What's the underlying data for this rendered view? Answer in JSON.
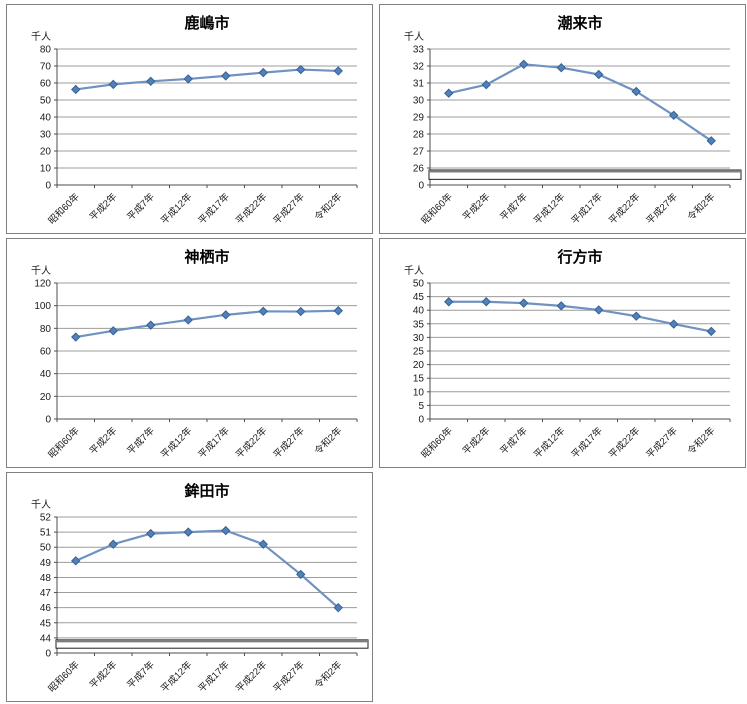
{
  "page": {
    "background": "#ffffff",
    "description_colors": {
      "series_line": "#7092c0",
      "series_marker": "#4f81bd",
      "marker_border": "#38618f",
      "gridline": "#9c9c9c",
      "axis": "#4d4d4d",
      "tick_text": "#1a1a1a",
      "panel_border": "#808080",
      "break_band_fill": "#ffffff",
      "break_band_border": "#1f1f1f",
      "break_band_top": "#7f7f7f"
    }
  },
  "chart_data": [
    {
      "id": "kashima",
      "type": "line",
      "title": "鹿嶋市",
      "ylabel": "千人",
      "categories": [
        "昭和60年",
        "平成2年",
        "平成7年",
        "平成12年",
        "平成17年",
        "平成22年",
        "平成27年",
        "令和2年"
      ],
      "values": [
        56.2,
        59.2,
        61.0,
        62.4,
        64.2,
        66.1,
        67.9,
        67.1
      ],
      "ylim": [
        0,
        80
      ],
      "ystep": 10,
      "axis_break": false,
      "break_base_label": "",
      "grid": true,
      "legend": "none"
    },
    {
      "id": "itako",
      "type": "line",
      "title": "潮来市",
      "ylabel": "千人",
      "categories": [
        "昭和60年",
        "平成2年",
        "平成7年",
        "平成12年",
        "平成17年",
        "平成22年",
        "平成27年",
        "令和2年"
      ],
      "values": [
        30.4,
        30.9,
        32.1,
        31.9,
        31.5,
        30.5,
        29.1,
        27.6
      ],
      "ylim": [
        26,
        33
      ],
      "ystep": 1,
      "axis_break": true,
      "break_base_label": "0",
      "grid": true,
      "legend": "none"
    },
    {
      "id": "kamisu",
      "type": "line",
      "title": "神栖市",
      "ylabel": "千人",
      "categories": [
        "昭和60年",
        "平成2年",
        "平成7年",
        "平成12年",
        "平成17年",
        "平成22年",
        "平成27年",
        "令和2年"
      ],
      "values": [
        72.3,
        77.8,
        82.8,
        87.4,
        91.9,
        95.0,
        94.8,
        95.5
      ],
      "ylim": [
        0,
        120
      ],
      "ystep": 20,
      "axis_break": false,
      "break_base_label": "",
      "grid": true,
      "legend": "none"
    },
    {
      "id": "namegata",
      "type": "line",
      "title": "行方市",
      "ylabel": "千人",
      "categories": [
        "昭和60年",
        "平成2年",
        "平成7年",
        "平成12年",
        "平成17年",
        "平成22年",
        "平成27年",
        "令和2年"
      ],
      "values": [
        43.1,
        43.1,
        42.6,
        41.6,
        40.1,
        37.8,
        34.9,
        32.2
      ],
      "ylim": [
        0,
        50
      ],
      "ystep": 5,
      "axis_break": false,
      "break_base_label": "",
      "grid": true,
      "legend": "none"
    },
    {
      "id": "hokota",
      "type": "line",
      "title": "鉾田市",
      "ylabel": "千人",
      "categories": [
        "昭和60年",
        "平成2年",
        "平成7年",
        "平成12年",
        "平成17年",
        "平成22年",
        "平成27年",
        "令和2年"
      ],
      "values": [
        49.1,
        50.2,
        50.9,
        51.0,
        51.1,
        50.2,
        48.2,
        46.0
      ],
      "ylim": [
        44,
        52
      ],
      "ystep": 1,
      "axis_break": true,
      "break_base_label": "0",
      "grid": true,
      "legend": "none"
    }
  ]
}
